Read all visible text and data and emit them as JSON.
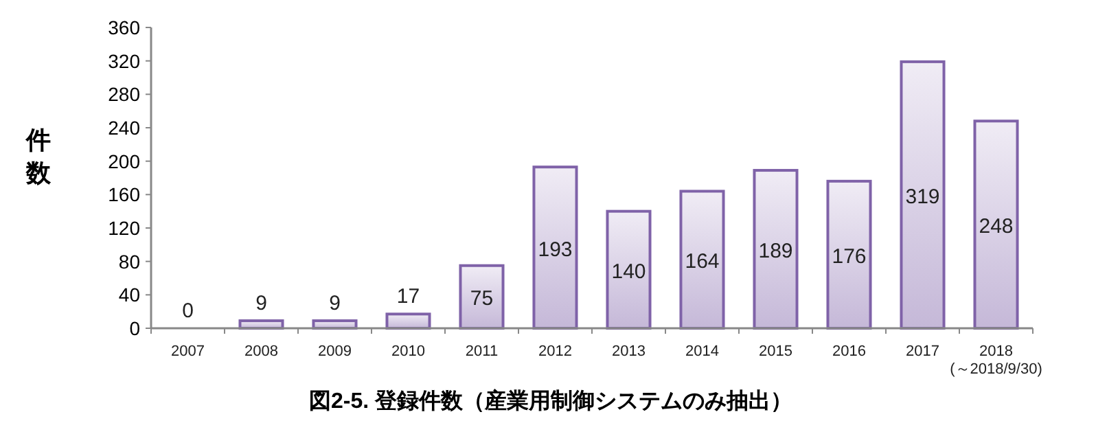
{
  "chart_data": {
    "type": "bar",
    "title": "図2-5. 登録件数（産業用制御システムのみ抽出）",
    "ylabel": "件数",
    "categories": [
      "2007",
      "2008",
      "2009",
      "2010",
      "2011",
      "2012",
      "2013",
      "2014",
      "2015",
      "2016",
      "2017",
      "2018\n(～2018/9/30)"
    ],
    "values": [
      0,
      9,
      9,
      17,
      75,
      193,
      140,
      164,
      189,
      176,
      319,
      248
    ],
    "color": "#7f62a8",
    "ylim": [
      0,
      360
    ],
    "yticks": [
      0,
      40,
      80,
      120,
      160,
      200,
      240,
      280,
      320,
      360
    ],
    "data_labels": true,
    "grid": false
  }
}
